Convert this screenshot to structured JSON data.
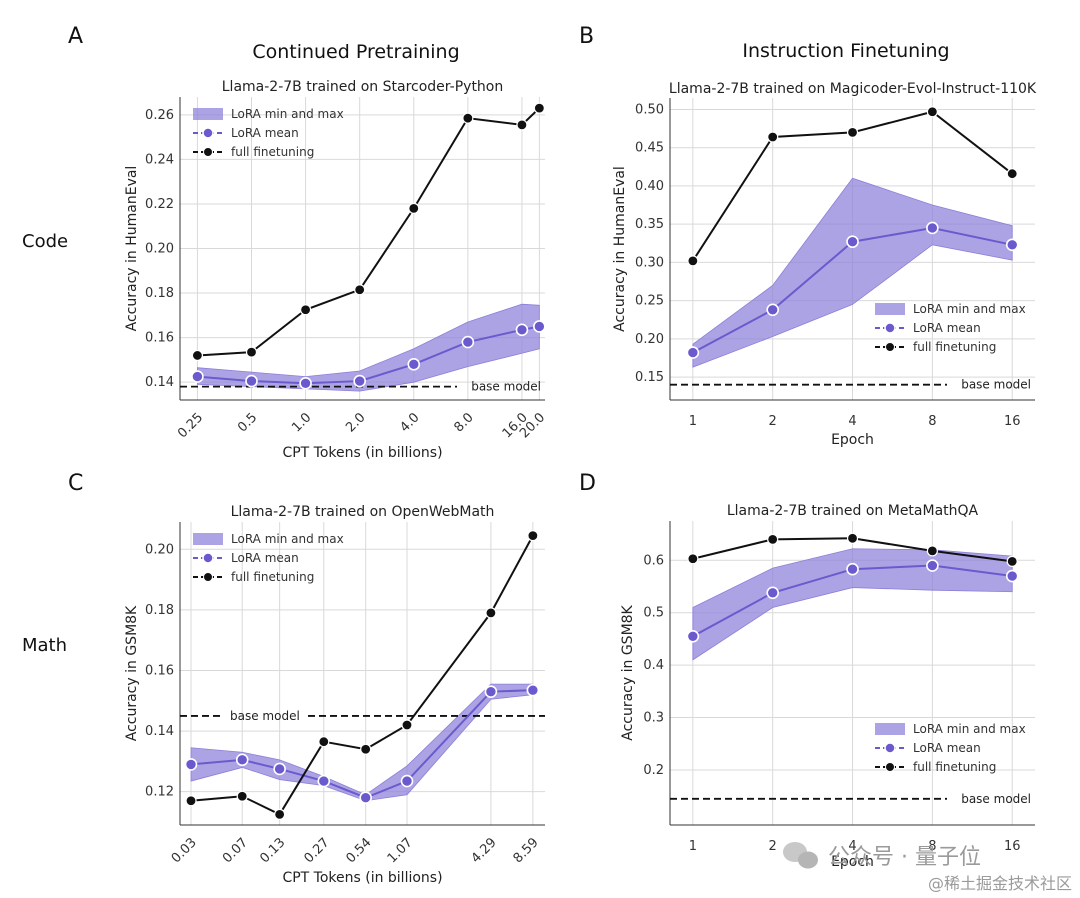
{
  "figure": {
    "col_titles": [
      "Continued Pretraining",
      "Instruction Finetuning"
    ],
    "row_labels": [
      "Code",
      "Math"
    ],
    "legend": {
      "band": "LoRA min and max",
      "mean": "LoRA mean",
      "full": "full finetuning"
    },
    "base_label": "base model",
    "colors": {
      "band": "#8c7fd9",
      "mean": "#6a5acd",
      "full": "#111111",
      "base": "#111111"
    }
  },
  "watermark": {
    "line1": "公众号 · 量子位",
    "line2": "@稀土掘金技术社区"
  },
  "chart_data": [
    {
      "letter": "A",
      "type": "line",
      "title": "Llama-2-7B trained on Starcoder-Python",
      "xlabel": "CPT Tokens (in billions)",
      "ylabel": "Accuracy in HumanEval",
      "x_scale": "log",
      "x": [
        0.25,
        0.5,
        1.0,
        2.0,
        4.0,
        8.0,
        16.0,
        20.0
      ],
      "xtick_labels": [
        "0.25",
        "0.5",
        "1.0",
        "2.0",
        "4.0",
        "8.0",
        "16.0",
        "20.0"
      ],
      "xlim": [
        0.2,
        21.5
      ],
      "ylim": [
        0.132,
        0.268
      ],
      "yticks": [
        0.14,
        0.16,
        0.18,
        0.2,
        0.22,
        0.24,
        0.26
      ],
      "ytick_labels": [
        "0.14",
        "0.16",
        "0.18",
        "0.20",
        "0.22",
        "0.24",
        "0.26"
      ],
      "lora_mean": [
        0.1425,
        0.1405,
        0.1395,
        0.1405,
        0.148,
        0.158,
        0.1635,
        0.165
      ],
      "lora_min": [
        0.139,
        0.138,
        0.137,
        0.136,
        0.14,
        0.147,
        0.153,
        0.155
      ],
      "lora_max": [
        0.1465,
        0.1445,
        0.1425,
        0.145,
        0.155,
        0.167,
        0.175,
        0.1745
      ],
      "full_finetuning": [
        0.152,
        0.1535,
        0.1725,
        0.1815,
        0.218,
        0.2585,
        0.2555,
        0.263
      ],
      "base_model": 0.138,
      "legend_position": "top-left",
      "base_label_position": "right"
    },
    {
      "letter": "B",
      "type": "line",
      "title": "Llama-2-7B trained on Magicoder-Evol-Instruct-110K",
      "xlabel": "Epoch",
      "ylabel": "Accuracy in HumanEval",
      "x_scale": "log",
      "x": [
        1,
        2,
        4,
        8,
        16
      ],
      "xtick_labels": [
        "1",
        "2",
        "4",
        "8",
        "16"
      ],
      "xlim": [
        0.82,
        19.5
      ],
      "ylim": [
        0.12,
        0.515
      ],
      "yticks": [
        0.15,
        0.2,
        0.25,
        0.3,
        0.35,
        0.4,
        0.45,
        0.5
      ],
      "ytick_labels": [
        "0.15",
        "0.20",
        "0.25",
        "0.30",
        "0.35",
        "0.40",
        "0.45",
        "0.50"
      ],
      "lora_mean": [
        0.182,
        0.238,
        0.327,
        0.345,
        0.323
      ],
      "lora_min": [
        0.163,
        0.203,
        0.245,
        0.323,
        0.303
      ],
      "lora_max": [
        0.193,
        0.27,
        0.41,
        0.375,
        0.348
      ],
      "full_finetuning": [
        0.302,
        0.464,
        0.47,
        0.497,
        0.416
      ],
      "base_model": 0.14,
      "legend_position": "center-right",
      "base_label_position": "right"
    },
    {
      "letter": "C",
      "type": "line",
      "title": "Llama-2-7B trained on OpenWebMath",
      "xlabel": "CPT Tokens (in billions)",
      "ylabel": "Accuracy in GSM8K",
      "x_scale": "log",
      "x": [
        0.03,
        0.07,
        0.13,
        0.27,
        0.54,
        1.07,
        4.29,
        8.59
      ],
      "xtick_labels": [
        "0.03",
        "0.07",
        "0.13",
        "0.27",
        "0.54",
        "1.07",
        "4.29",
        "8.59"
      ],
      "xlim": [
        0.025,
        10.5
      ],
      "ylim": [
        0.109,
        0.209
      ],
      "yticks": [
        0.12,
        0.14,
        0.16,
        0.18,
        0.2
      ],
      "ytick_labels": [
        "0.12",
        "0.14",
        "0.16",
        "0.18",
        "0.20"
      ],
      "lora_mean": [
        0.129,
        0.1305,
        0.1275,
        0.1235,
        0.118,
        0.1235,
        0.153,
        0.1535
      ],
      "lora_min": [
        0.1235,
        0.128,
        0.124,
        0.122,
        0.117,
        0.119,
        0.1505,
        0.152
      ],
      "lora_max": [
        0.1345,
        0.133,
        0.1305,
        0.125,
        0.119,
        0.1285,
        0.1555,
        0.1555
      ],
      "full_finetuning": [
        0.117,
        0.1185,
        0.1125,
        0.1365,
        0.134,
        0.142,
        0.179,
        0.2045
      ],
      "base_model": 0.145,
      "legend_position": "top-left",
      "base_label_position": "left"
    },
    {
      "letter": "D",
      "type": "line",
      "title": "Llama-2-7B trained on MetaMathQA",
      "xlabel": "Epoch",
      "ylabel": "Accuracy in GSM8K",
      "x_scale": "log",
      "x": [
        1,
        2,
        4,
        8,
        16
      ],
      "xtick_labels": [
        "1",
        "2",
        "4",
        "8",
        "16"
      ],
      "xlim": [
        0.82,
        19.5
      ],
      "ylim": [
        0.095,
        0.675
      ],
      "yticks": [
        0.2,
        0.3,
        0.4,
        0.5,
        0.6
      ],
      "ytick_labels": [
        "0.2",
        "0.3",
        "0.4",
        "0.5",
        "0.6"
      ],
      "lora_mean": [
        0.455,
        0.538,
        0.583,
        0.59,
        0.57
      ],
      "lora_min": [
        0.41,
        0.51,
        0.548,
        0.543,
        0.54
      ],
      "lora_max": [
        0.51,
        0.585,
        0.622,
        0.62,
        0.608
      ],
      "full_finetuning": [
        0.603,
        0.64,
        0.642,
        0.618,
        0.598
      ],
      "base_model": 0.145,
      "legend_position": "lower-right",
      "base_label_position": "right"
    }
  ]
}
